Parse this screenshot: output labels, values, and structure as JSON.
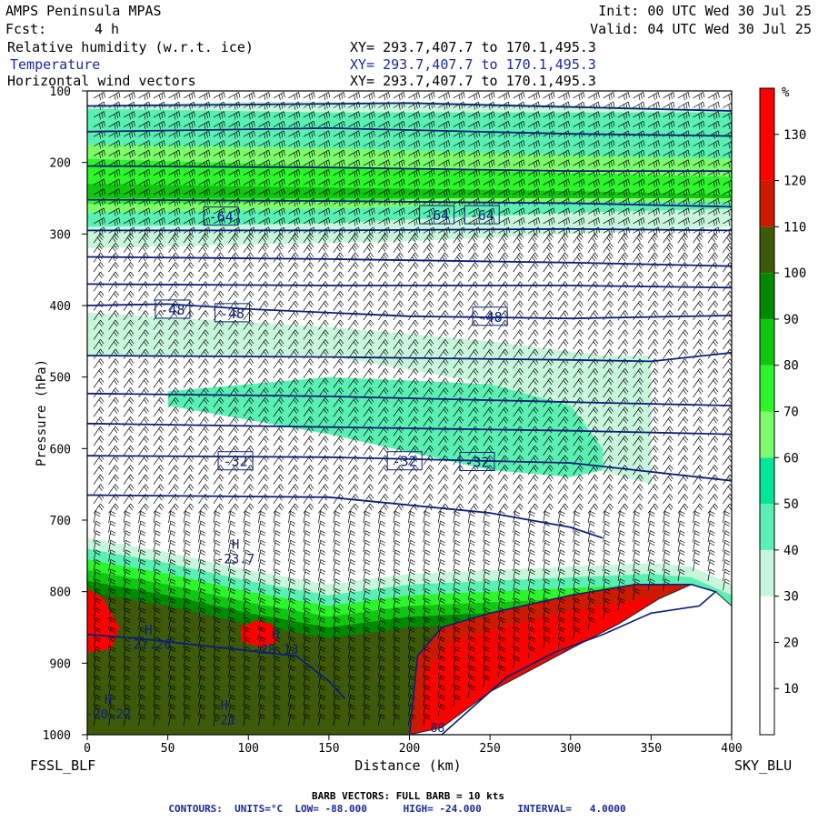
{
  "header": {
    "model": "AMPS Peninsula MPAS",
    "init": "Init: 00 UTC Wed 30 Jul 25",
    "fcst_label": "Fcst:",
    "fcst_value": "4 h",
    "valid": "Valid: 04 UTC Wed 30 Jul 25",
    "fields": [
      {
        "name": "Relative humidity (w.r.t. ice)",
        "xy": "XY= 293.7,407.7 to 170.1,495.3",
        "color": "#000000"
      },
      {
        "name": "Temperature",
        "xy": "XY= 293.7,407.7 to 170.1,495.3",
        "color": "#1a2a9a"
      },
      {
        "name": "Horizontal wind vectors",
        "xy": "XY= 293.7,407.7 to 170.1,495.3",
        "color": "#000000"
      }
    ]
  },
  "footer": {
    "left_label": "FSSL_BLF",
    "right_label": "SKY_BLU",
    "barb_note": "BARB VECTORS:  FULL BARB = 10 kts",
    "contour_note": "CONTOURS:  UNITS=°C  LOW= -88.000      HIGH= -24.000      INTERVAL=   4.0000"
  },
  "colors": {
    "axis": "#000000",
    "temp_contour": "#0d1e78",
    "rh_scale": [
      {
        "from": 0,
        "to": 30,
        "color": "#ffffff"
      },
      {
        "from": 30,
        "to": 40,
        "color": "#c8f6dc"
      },
      {
        "from": 40,
        "to": 50,
        "color": "#5af0b4"
      },
      {
        "from": 50,
        "to": 60,
        "color": "#00e69a"
      },
      {
        "from": 60,
        "to": 70,
        "color": "#7cfc6a"
      },
      {
        "from": 70,
        "to": 80,
        "color": "#2cf52c"
      },
      {
        "from": 80,
        "to": 90,
        "color": "#11c611"
      },
      {
        "from": 90,
        "to": 100,
        "color": "#008a00"
      },
      {
        "from": 100,
        "to": 110,
        "color": "#3c5a0a"
      },
      {
        "from": 110,
        "to": 120,
        "color": "#cc1a00"
      },
      {
        "from": 120,
        "to": 140,
        "color": "#ff0000"
      }
    ]
  },
  "chart_data": {
    "type": "heatmap",
    "title": "AMPS Peninsula MPAS",
    "xlabel": "Distance (km)",
    "ylabel": "Pressure (hPa)",
    "xlim": [
      0,
      400
    ],
    "ylim": [
      1000,
      100
    ],
    "x_ticks": [
      0,
      50,
      100,
      150,
      200,
      250,
      300,
      350,
      400
    ],
    "y_ticks": [
      100,
      200,
      300,
      400,
      500,
      600,
      700,
      800,
      900,
      1000
    ],
    "colorbar": {
      "unit": "%",
      "ticks": [
        10,
        20,
        30,
        40,
        50,
        60,
        70,
        80,
        90,
        100,
        110,
        120,
        130
      ]
    },
    "rh_layers": [
      {
        "rh": 35,
        "top": [
          [
            0,
            120
          ],
          [
            100,
            115
          ],
          [
            200,
            115
          ],
          [
            300,
            120
          ],
          [
            400,
            125
          ]
        ],
        "bottom": [
          [
            0,
            320
          ],
          [
            100,
            315
          ],
          [
            200,
            310
          ],
          [
            300,
            300
          ],
          [
            400,
            290
          ]
        ]
      },
      {
        "rh": 45,
        "top": [
          [
            0,
            125
          ],
          [
            150,
            130
          ],
          [
            300,
            130
          ],
          [
            400,
            130
          ]
        ],
        "bottom": [
          [
            0,
            290
          ],
          [
            150,
            285
          ],
          [
            300,
            270
          ],
          [
            400,
            265
          ]
        ]
      },
      {
        "rh": 65,
        "top": [
          [
            0,
            175
          ],
          [
            150,
            180
          ],
          [
            300,
            190
          ],
          [
            400,
            195
          ]
        ],
        "bottom": [
          [
            0,
            270
          ],
          [
            150,
            265
          ],
          [
            300,
            255
          ],
          [
            400,
            255
          ]
        ]
      },
      {
        "rh": 75,
        "top": [
          [
            0,
            195
          ],
          [
            150,
            205
          ],
          [
            300,
            215
          ],
          [
            400,
            220
          ]
        ],
        "bottom": [
          [
            0,
            258
          ],
          [
            150,
            255
          ],
          [
            300,
            245
          ],
          [
            400,
            245
          ]
        ]
      },
      {
        "rh": 85,
        "top": [
          [
            0,
            230
          ],
          [
            150,
            235
          ],
          [
            300,
            240
          ],
          [
            400,
            245
          ]
        ],
        "bottom": [
          [
            0,
            250
          ],
          [
            150,
            250
          ],
          [
            300,
            250
          ],
          [
            400,
            250
          ]
        ]
      },
      {
        "rh": 35,
        "top": [
          [
            0,
            410
          ],
          [
            150,
            430
          ],
          [
            250,
            450
          ],
          [
            320,
            470
          ],
          [
            350,
            470
          ]
        ],
        "bottom": [
          [
            0,
            470
          ],
          [
            150,
            470
          ],
          [
            250,
            510
          ],
          [
            300,
            620
          ],
          [
            350,
            650
          ]
        ]
      },
      {
        "rh": 45,
        "top": [
          [
            50,
            520
          ],
          [
            150,
            500
          ],
          [
            250,
            510
          ],
          [
            300,
            540
          ],
          [
            320,
            600
          ]
        ],
        "bottom": [
          [
            50,
            540
          ],
          [
            150,
            580
          ],
          [
            250,
            630
          ],
          [
            300,
            640
          ],
          [
            320,
            630
          ]
        ]
      }
    ],
    "rh_lower": {
      "top_edge": [
        [
          0,
          725
        ],
        [
          50,
          745
        ],
        [
          100,
          770
        ],
        [
          150,
          790
        ],
        [
          200,
          775
        ],
        [
          250,
          770
        ],
        [
          300,
          765
        ],
        [
          350,
          760
        ],
        [
          375,
          765
        ],
        [
          400,
          790
        ]
      ],
      "terrain": [
        [
          0,
          1000
        ],
        [
          100,
          1000
        ],
        [
          200,
          1000
        ],
        [
          220,
          990
        ],
        [
          250,
          940
        ],
        [
          300,
          880
        ],
        [
          330,
          845
        ],
        [
          355,
          810
        ],
        [
          375,
          790
        ],
        [
          390,
          800
        ],
        [
          400,
          820
        ]
      ],
      "bands": [
        {
          "rh": 35,
          "offset_hpa": 0
        },
        {
          "rh": 45,
          "offset_hpa": 15
        },
        {
          "rh": 75,
          "offset_hpa": 30
        },
        {
          "rh": 85,
          "offset_hpa": 45
        },
        {
          "rh": 95,
          "offset_hpa": 60
        },
        {
          "rh": 105,
          "offset_hpa": 75
        }
      ],
      "saturated_region": [
        [
          200,
          1000
        ],
        [
          205,
          890
        ],
        [
          220,
          850
        ],
        [
          250,
          830
        ],
        [
          300,
          805
        ],
        [
          340,
          790
        ],
        [
          375,
          790
        ],
        [
          390,
          800
        ],
        [
          380,
          820
        ],
        [
          350,
          830
        ],
        [
          320,
          860
        ],
        [
          290,
          885
        ],
        [
          260,
          920
        ],
        [
          240,
          960
        ],
        [
          220,
          1000
        ]
      ],
      "red_left": [
        [
          0,
          795
        ],
        [
          10,
          810
        ],
        [
          20,
          850
        ],
        [
          15,
          880
        ],
        [
          0,
          885
        ]
      ],
      "red_patch": [
        [
          95,
          850
        ],
        [
          105,
          840
        ],
        [
          115,
          845
        ],
        [
          118,
          870
        ],
        [
          108,
          878
        ],
        [
          96,
          870
        ]
      ]
    },
    "temperature_isotherms": [
      {
        "value": -64,
        "points": [
          [
            0,
            121
          ],
          [
            200,
            117
          ],
          [
            400,
            128
          ]
        ]
      },
      {
        "value": -68,
        "points": [
          [
            0,
            157
          ],
          [
            150,
            152
          ],
          [
            300,
            160
          ],
          [
            400,
            163
          ]
        ]
      },
      {
        "value": -64,
        "points": [
          [
            0,
            205
          ],
          [
            150,
            207
          ],
          [
            300,
            212
          ],
          [
            400,
            212
          ]
        ]
      },
      {
        "value": -64,
        "points": [
          [
            0,
            252
          ],
          [
            150,
            254
          ],
          [
            300,
            257
          ],
          [
            400,
            262
          ]
        ]
      },
      {
        "value": -60,
        "points": [
          [
            0,
            295
          ],
          [
            150,
            295
          ],
          [
            300,
            293
          ],
          [
            400,
            295
          ]
        ]
      },
      {
        "value": -56,
        "points": [
          [
            0,
            332
          ],
          [
            150,
            335
          ],
          [
            300,
            340
          ],
          [
            400,
            345
          ]
        ]
      },
      {
        "value": -52,
        "points": [
          [
            0,
            370
          ],
          [
            150,
            372
          ],
          [
            300,
            372
          ],
          [
            400,
            375
          ]
        ]
      },
      {
        "value": -48,
        "points": [
          [
            0,
            400
          ],
          [
            50,
            398
          ],
          [
            100,
            405
          ],
          [
            200,
            415
          ],
          [
            300,
            418
          ],
          [
            400,
            414
          ]
        ]
      },
      {
        "value": -44,
        "points": [
          [
            0,
            470
          ],
          [
            150,
            472
          ],
          [
            300,
            476
          ],
          [
            350,
            478
          ],
          [
            400,
            466
          ]
        ]
      },
      {
        "value": -40,
        "points": [
          [
            0,
            523
          ],
          [
            150,
            527
          ],
          [
            300,
            535
          ],
          [
            400,
            540
          ]
        ]
      },
      {
        "value": -36,
        "points": [
          [
            0,
            565
          ],
          [
            150,
            570
          ],
          [
            300,
            575
          ],
          [
            400,
            580
          ]
        ]
      },
      {
        "value": -32,
        "points": [
          [
            0,
            610
          ],
          [
            150,
            612
          ],
          [
            300,
            620
          ],
          [
            400,
            645
          ]
        ]
      },
      {
        "value": -28,
        "points": [
          [
            0,
            665
          ],
          [
            150,
            668
          ],
          [
            250,
            690
          ],
          [
            300,
            710
          ],
          [
            320,
            725
          ]
        ]
      },
      {
        "value": -24,
        "points": [
          [
            0,
            860
          ],
          [
            30,
            865
          ],
          [
            70,
            875
          ],
          [
            130,
            890
          ],
          [
            150,
            925
          ],
          [
            160,
            950
          ]
        ]
      }
    ],
    "contour_labels": [
      {
        "text": "-64",
        "x": 83,
        "y": 275
      },
      {
        "text": "-64",
        "x": 217,
        "y": 273
      },
      {
        "text": "-64",
        "x": 245,
        "y": 273
      },
      {
        "text": "-48",
        "x": 53,
        "y": 405
      },
      {
        "text": "-48",
        "x": 90,
        "y": 410
      },
      {
        "text": "-48",
        "x": 250,
        "y": 415
      },
      {
        "text": "-32",
        "x": 92,
        "y": 617
      },
      {
        "text": "-32",
        "x": 197,
        "y": 617
      },
      {
        "text": "-32",
        "x": 242,
        "y": 618
      }
    ],
    "extrema": [
      {
        "type": "H",
        "value": "-23.7",
        "x": 92,
        "y": 755
      },
      {
        "type": "H",
        "value": "-27.26",
        "x": 38,
        "y": 875
      },
      {
        "type": "H",
        "value": "-28.13",
        "x": 117,
        "y": 882
      },
      {
        "type": "H",
        "value": "-20.22",
        "x": 13,
        "y": 972
      },
      {
        "type": "H",
        "value": "-21",
        "x": 85,
        "y": 980
      }
    ],
    "bottom_marker": "88"
  }
}
